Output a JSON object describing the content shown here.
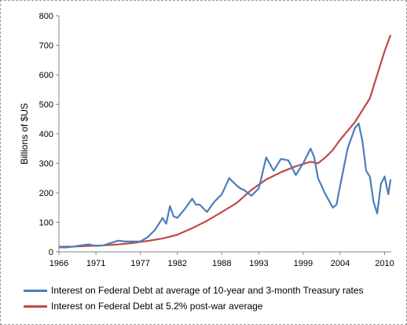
{
  "chart_data": {
    "type": "line",
    "title": "",
    "xlabel": "",
    "ylabel": "Billions of $US",
    "xlim": [
      1966,
      2010.9
    ],
    "ylim": [
      0,
      800
    ],
    "y_ticks": [
      0,
      100,
      200,
      300,
      400,
      500,
      600,
      700,
      800
    ],
    "x_ticks": [
      1966,
      1971,
      1977,
      1982,
      1988,
      1993,
      1999,
      2004,
      2010
    ],
    "grid": false,
    "legend_position": "bottom",
    "series": [
      {
        "name": "Interest on Federal Debt at average of 10-year and 3-month Treasury rates",
        "color": "#4a7ebb",
        "x": [
          1966,
          1967,
          1968,
          1969,
          1970,
          1971,
          1972,
          1973,
          1974,
          1975,
          1976,
          1977,
          1978,
          1979,
          1980,
          1980.5,
          1981,
          1981.5,
          1982,
          1983,
          1984,
          1984.5,
          1985,
          1986,
          1987,
          1988,
          1989,
          1990,
          1990.5,
          1991,
          1992,
          1993,
          1994,
          1995,
          1996,
          1997,
          1998,
          1999,
          2000,
          2000.5,
          2001,
          2002,
          2003,
          2003.5,
          2004,
          2005,
          2006,
          2006.5,
          2007,
          2007.5,
          2008,
          2008.5,
          2009,
          2009.5,
          2010,
          2010.5,
          2010.8
        ],
        "y": [
          15,
          15,
          18,
          22,
          25,
          20,
          22,
          30,
          38,
          35,
          35,
          35,
          50,
          75,
          115,
          95,
          155,
          120,
          115,
          145,
          180,
          160,
          160,
          135,
          170,
          195,
          250,
          225,
          215,
          210,
          190,
          215,
          320,
          275,
          315,
          310,
          260,
          300,
          350,
          320,
          250,
          195,
          150,
          160,
          225,
          350,
          420,
          435,
          375,
          275,
          255,
          170,
          130,
          230,
          255,
          195,
          245
        ]
      },
      {
        "name": "Interest on Federal Debt at 5.2% post-war average",
        "color": "#be4b48",
        "x": [
          1966,
          1968,
          1970,
          1972,
          1974,
          1976,
          1978,
          1980,
          1982,
          1984,
          1986,
          1988,
          1990,
          1992,
          1994,
          1996,
          1998,
          2000,
          2001,
          2002,
          2003,
          2004,
          2005,
          2006,
          2007,
          2008,
          2009,
          2010,
          2010.8
        ],
        "y": [
          17,
          18,
          20,
          22,
          25,
          30,
          37,
          45,
          58,
          80,
          105,
          135,
          165,
          210,
          245,
          270,
          290,
          305,
          300,
          320,
          345,
          380,
          410,
          440,
          480,
          520,
          600,
          680,
          735
        ]
      }
    ]
  }
}
